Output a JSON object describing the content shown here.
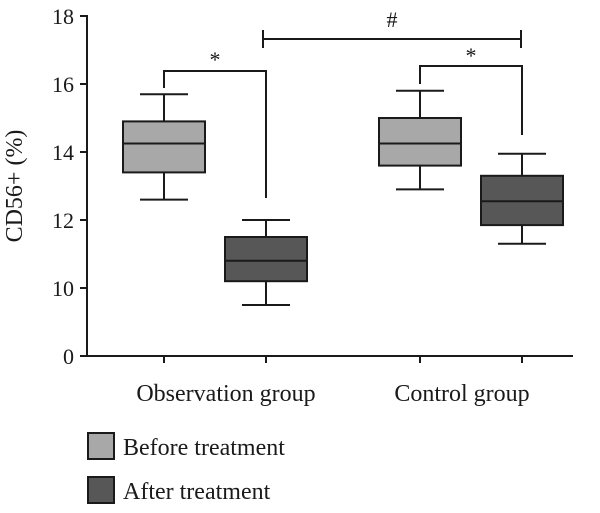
{
  "chart_data": {
    "type": "box",
    "title": "",
    "xlabel": "",
    "ylabel": "CD56+ (%)",
    "ylim": [
      0,
      18
    ],
    "yticks": [
      "0",
      "10",
      "12",
      "14",
      "16",
      "18"
    ],
    "categories": [
      "Observation group",
      "Control group"
    ],
    "series": [
      {
        "name": "Before treatment",
        "color": "#a8a8a8",
        "boxes": [
          {
            "min": 12.6,
            "q1": 13.4,
            "median": 14.25,
            "q3": 14.9,
            "max": 15.7
          },
          {
            "min": 12.9,
            "q1": 13.6,
            "median": 14.25,
            "q3": 15.0,
            "max": 15.8
          }
        ]
      },
      {
        "name": "After treatment",
        "color": "#575757",
        "boxes": [
          {
            "min": 9.5,
            "q1": 10.2,
            "median": 10.8,
            "q3": 11.5,
            "max": 12.0
          },
          {
            "min": 11.3,
            "q1": 11.85,
            "median": 12.55,
            "q3": 13.3,
            "max": 13.95
          }
        ]
      }
    ],
    "annotations": [
      {
        "symbol": "*",
        "between": [
          "Observation group / Before treatment",
          "Observation group / After treatment"
        ]
      },
      {
        "symbol": "*",
        "between": [
          "Control group / Before treatment",
          "Control group / After treatment"
        ]
      },
      {
        "symbol": "#",
        "between": [
          "Observation group / After treatment",
          "Control group / After treatment"
        ]
      }
    ],
    "legend_position": "bottom-left",
    "grid": false
  }
}
